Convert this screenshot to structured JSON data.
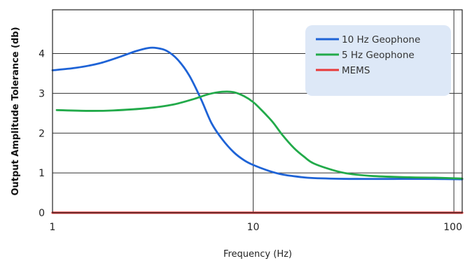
{
  "chart_data": {
    "type": "line",
    "title": "",
    "xlabel": "Frequency (Hz)",
    "ylabel": "Output Amplitude Tolerance (db)",
    "x_scale": "log",
    "xlim": [
      1,
      110
    ],
    "ylim": [
      0,
      5.1
    ],
    "x_ticks": [
      1,
      10,
      100
    ],
    "x_tick_labels": [
      "1",
      "10",
      "100"
    ],
    "y_ticks": [
      0,
      1,
      2,
      3,
      4
    ],
    "y_tick_labels": [
      "0",
      "1",
      "2",
      "3",
      "4"
    ],
    "grid": true,
    "legend_position": "top-right",
    "series": [
      {
        "name": "10 Hz Geophone",
        "color": "#1e63d6",
        "x": [
          1,
          1.3,
          1.7,
          2.2,
          2.6,
          3.0,
          3.3,
          3.7,
          4.2,
          4.8,
          5.5,
          6.2,
          7.0,
          8.0,
          9.0,
          10,
          12,
          14,
          17,
          20,
          30,
          50,
          80,
          110
        ],
        "y": [
          3.58,
          3.64,
          3.75,
          3.93,
          4.06,
          4.14,
          4.14,
          4.07,
          3.85,
          3.45,
          2.85,
          2.25,
          1.85,
          1.52,
          1.32,
          1.2,
          1.05,
          0.96,
          0.9,
          0.87,
          0.85,
          0.85,
          0.85,
          0.84
        ]
      },
      {
        "name": "5 Hz Geophone",
        "color": "#22aa4a",
        "x": [
          1.05,
          1.5,
          2,
          3,
          4,
          5,
          6,
          7,
          8,
          9,
          10,
          11,
          12.5,
          14,
          16,
          18,
          20,
          25,
          30,
          40,
          60,
          80,
          110
        ],
        "y": [
          2.58,
          2.56,
          2.57,
          2.63,
          2.72,
          2.85,
          2.98,
          3.04,
          3.03,
          2.93,
          2.78,
          2.58,
          2.28,
          1.95,
          1.62,
          1.4,
          1.24,
          1.07,
          0.98,
          0.92,
          0.89,
          0.88,
          0.86
        ]
      },
      {
        "name": "MEMS",
        "color": "#e83a3a",
        "x": [
          1,
          110
        ],
        "y": [
          0,
          0
        ]
      }
    ]
  }
}
